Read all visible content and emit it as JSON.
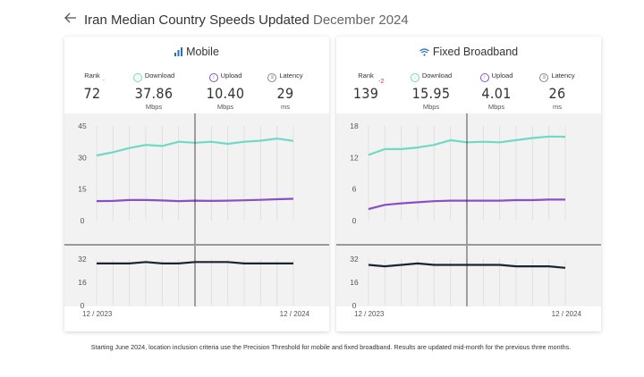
{
  "header": {
    "back_icon": "arrow-left-icon",
    "title": "Iran Median Country Speeds Updated",
    "date": "December 2024"
  },
  "cards": {
    "mobile": {
      "title": "Mobile",
      "icon": "signal-bars-icon",
      "rank_label": "Rank",
      "rank": "72",
      "rank_change": "-",
      "download_label": "Download",
      "download": "37.86",
      "download_unit": "Mbps",
      "upload_label": "Upload",
      "upload": "10.40",
      "upload_unit": "Mbps",
      "latency_label": "Latency",
      "latency": "29",
      "latency_unit": "ms"
    },
    "fixed": {
      "title": "Fixed Broadband",
      "icon": "wifi-icon",
      "rank_label": "Rank",
      "rank": "139",
      "rank_change": "-2",
      "download_label": "Download",
      "download": "15.95",
      "download_unit": "Mbps",
      "upload_label": "Upload",
      "upload": "4.01",
      "upload_unit": "Mbps",
      "latency_label": "Latency",
      "latency": "26",
      "latency_unit": "ms"
    }
  },
  "colors": {
    "download": "#6fd9c4",
    "upload": "#8a4fc4",
    "latency": "#1c2331",
    "mobile_icon": "#2a6fb8",
    "rank_change": "#d32f2f",
    "panel_bg": "#f2f2f2"
  },
  "chart_data": [
    {
      "type": "line",
      "name": "mobile-speed",
      "x": [
        "12/2023",
        "01/2024",
        "02/2024",
        "03/2024",
        "04/2024",
        "05/2024",
        "06/2024",
        "07/2024",
        "08/2024",
        "09/2024",
        "10/2024",
        "11/2024",
        "12/2024"
      ],
      "x_start_label": "12 / 2023",
      "x_end_label": "12 / 2024",
      "ylim": [
        0,
        45
      ],
      "yticks": [
        "0",
        "15",
        "30",
        "45"
      ],
      "ytick_values": [
        0,
        15,
        30,
        45
      ],
      "series": [
        {
          "name": "Download",
          "values": [
            31,
            32.5,
            34.5,
            36,
            35.5,
            37.5,
            37,
            37.5,
            36.5,
            37.5,
            38,
            39,
            37.9
          ]
        },
        {
          "name": "Upload",
          "values": [
            9.3,
            9.4,
            9.8,
            9.8,
            9.6,
            9.3,
            9.5,
            9.4,
            9.5,
            9.7,
            9.9,
            10.2,
            10.4
          ]
        }
      ],
      "cursor_index": 6
    },
    {
      "type": "line",
      "name": "mobile-latency",
      "x": [
        "12/2023",
        "01/2024",
        "02/2024",
        "03/2024",
        "04/2024",
        "05/2024",
        "06/2024",
        "07/2024",
        "08/2024",
        "09/2024",
        "10/2024",
        "11/2024",
        "12/2024"
      ],
      "ylim": [
        0,
        32
      ],
      "yticks": [
        "0",
        "16",
        "32"
      ],
      "ytick_values": [
        0,
        16,
        32
      ],
      "series": [
        {
          "name": "Latency",
          "values": [
            29,
            29,
            29,
            30,
            29,
            29,
            30,
            30,
            30,
            29,
            29,
            29,
            29
          ]
        }
      ],
      "cursor_index": 6
    },
    {
      "type": "line",
      "name": "fixed-speed",
      "x": [
        "12/2023",
        "01/2024",
        "02/2024",
        "03/2024",
        "04/2024",
        "05/2024",
        "06/2024",
        "07/2024",
        "08/2024",
        "09/2024",
        "10/2024",
        "11/2024",
        "12/2024"
      ],
      "x_start_label": "12 / 2023",
      "x_end_label": "12 / 2024",
      "ylim": [
        0,
        18
      ],
      "yticks": [
        "0",
        "6",
        "12",
        "18"
      ],
      "ytick_values": [
        0,
        6,
        12,
        18
      ],
      "series": [
        {
          "name": "Download",
          "values": [
            12.5,
            13.6,
            13.6,
            13.9,
            14.4,
            15.3,
            14.9,
            15.0,
            14.9,
            15.3,
            15.7,
            16.0,
            15.95
          ]
        },
        {
          "name": "Upload",
          "values": [
            2.2,
            3.0,
            3.3,
            3.5,
            3.7,
            3.8,
            3.8,
            3.8,
            3.8,
            3.9,
            3.9,
            4.0,
            4.01
          ]
        }
      ],
      "cursor_index": 6
    },
    {
      "type": "line",
      "name": "fixed-latency",
      "x": [
        "12/2023",
        "01/2024",
        "02/2024",
        "03/2024",
        "04/2024",
        "05/2024",
        "06/2024",
        "07/2024",
        "08/2024",
        "09/2024",
        "10/2024",
        "11/2024",
        "12/2024"
      ],
      "ylim": [
        0,
        32
      ],
      "yticks": [
        "0",
        "16",
        "32"
      ],
      "ytick_values": [
        0,
        16,
        32
      ],
      "series": [
        {
          "name": "Latency",
          "values": [
            28,
            27,
            28,
            29,
            28,
            28,
            28,
            28,
            28,
            27,
            27,
            27,
            26
          ]
        }
      ],
      "cursor_index": 6
    }
  ],
  "footnote": "Starting June 2024, location inclusion criteria use the Precision Threshold for mobile and fixed broadband. Results are updated mid-month for the previous three months."
}
